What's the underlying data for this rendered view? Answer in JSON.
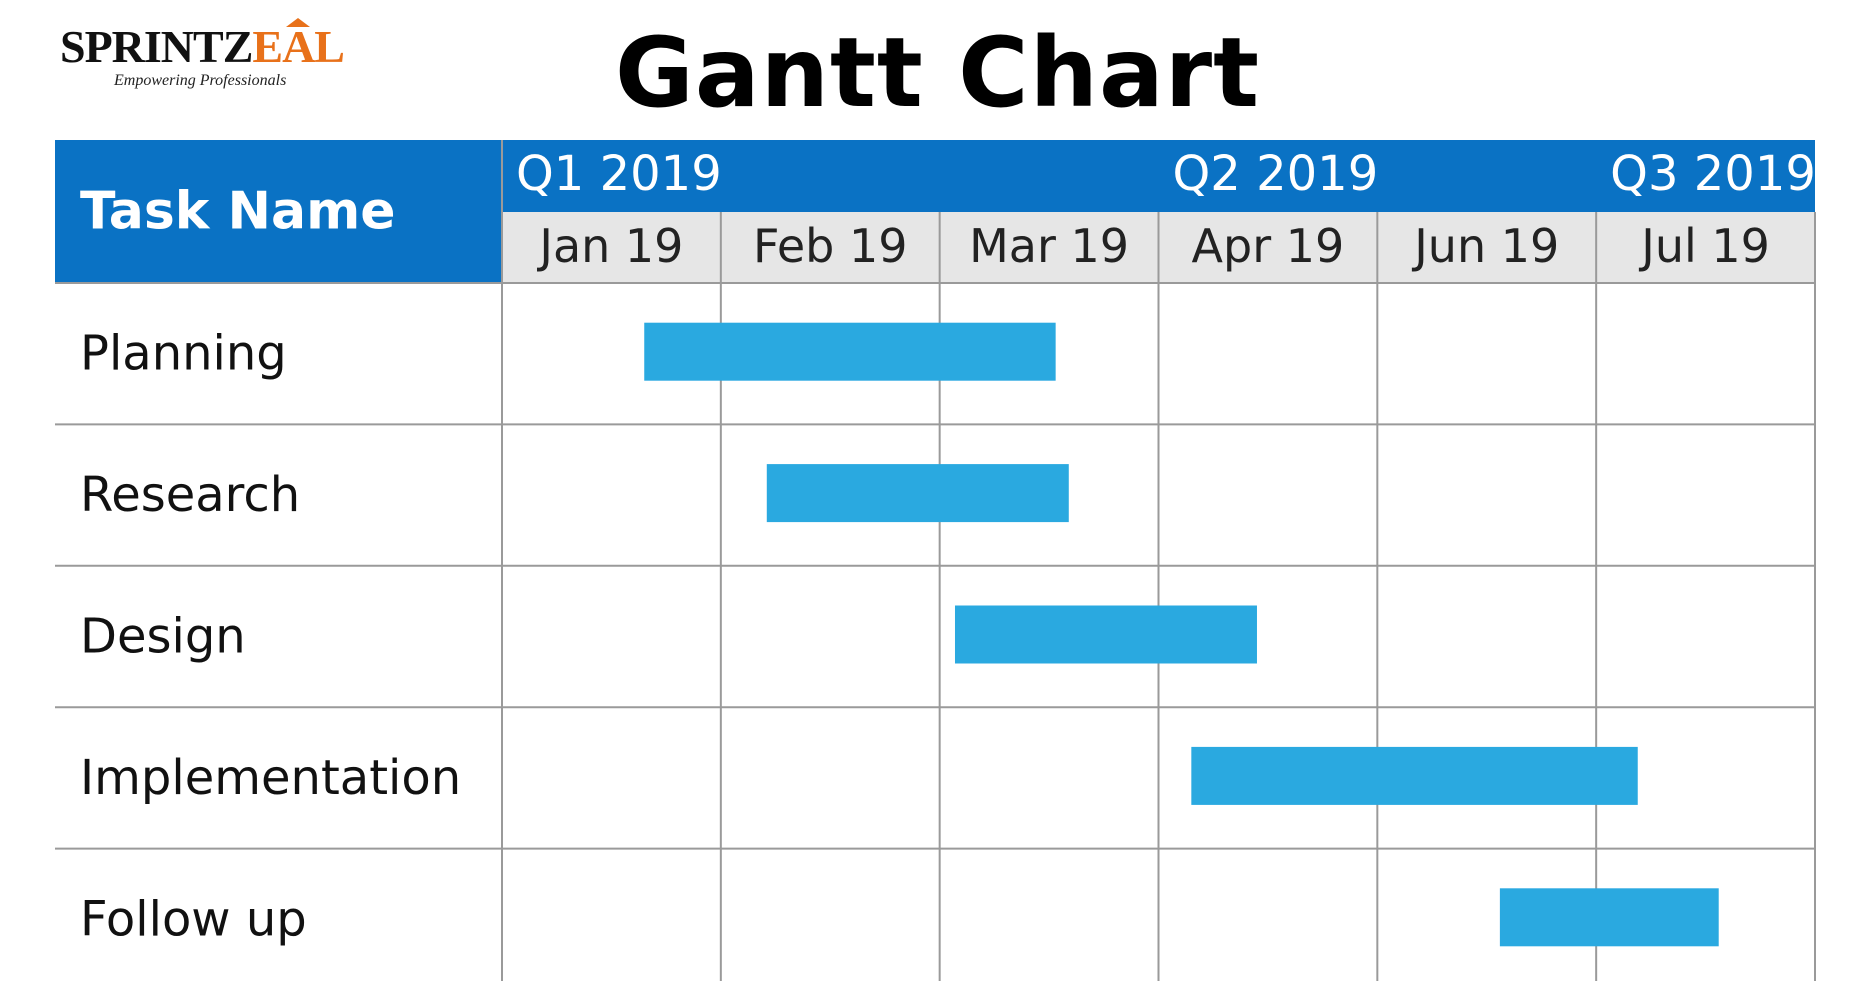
{
  "brand": {
    "name_part1": "SPRINTZ",
    "name_part2": "EAL",
    "tagline": "Empowering Professionals",
    "accent_color": "#e8711a"
  },
  "chart_data": {
    "type": "gantt",
    "title": "Gantt Chart",
    "task_header": "Task Name",
    "quarters": [
      "Q1 2019",
      "Q2 2019",
      "Q3 2019"
    ],
    "months": [
      "Jan 19",
      "Feb 19",
      "Mar 19",
      "Apr 19",
      "Jun 19",
      "Jul 19"
    ],
    "tasks": [
      {
        "name": "Planning",
        "start": 0.65,
        "end": 2.53
      },
      {
        "name": "Research",
        "start": 1.21,
        "end": 2.59
      },
      {
        "name": "Design",
        "start": 2.07,
        "end": 3.45
      },
      {
        "name": "Implementation",
        "start": 3.15,
        "end": 5.19
      },
      {
        "name": "Follow up",
        "start": 4.56,
        "end": 5.56
      }
    ],
    "colors": {
      "header_bg": "#0a72c4",
      "header_text": "#ffffff",
      "month_bg": "#e6e6e6",
      "bar": "#2aa9e0",
      "grid": "#9a9a9a"
    }
  }
}
